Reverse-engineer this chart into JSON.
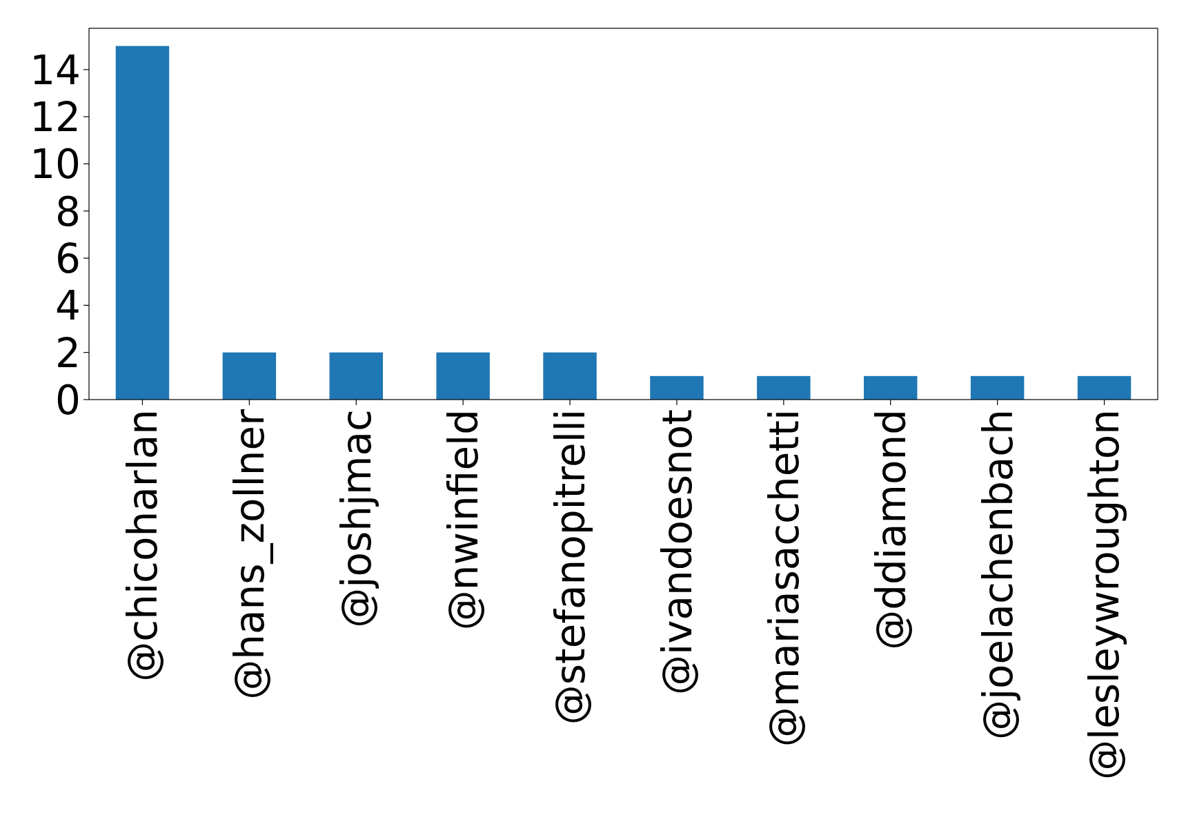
{
  "chart_data": {
    "type": "bar",
    "categories": [
      "@chicoharlan",
      "@hans_zollner",
      "@joshjmac",
      "@nwinfield",
      "@stefanopitrelli",
      "@ivandoesnot",
      "@mariasacchetti",
      "@ddiamond",
      "@joelachenbach",
      "@lesleywroughton"
    ],
    "values": [
      15,
      2,
      2,
      2,
      2,
      1,
      1,
      1,
      1,
      1
    ],
    "color": "#1f77b4",
    "ylim": [
      0,
      15.75
    ],
    "yticks": [
      0,
      2,
      4,
      6,
      8,
      10,
      12,
      14
    ],
    "grid": false
  }
}
